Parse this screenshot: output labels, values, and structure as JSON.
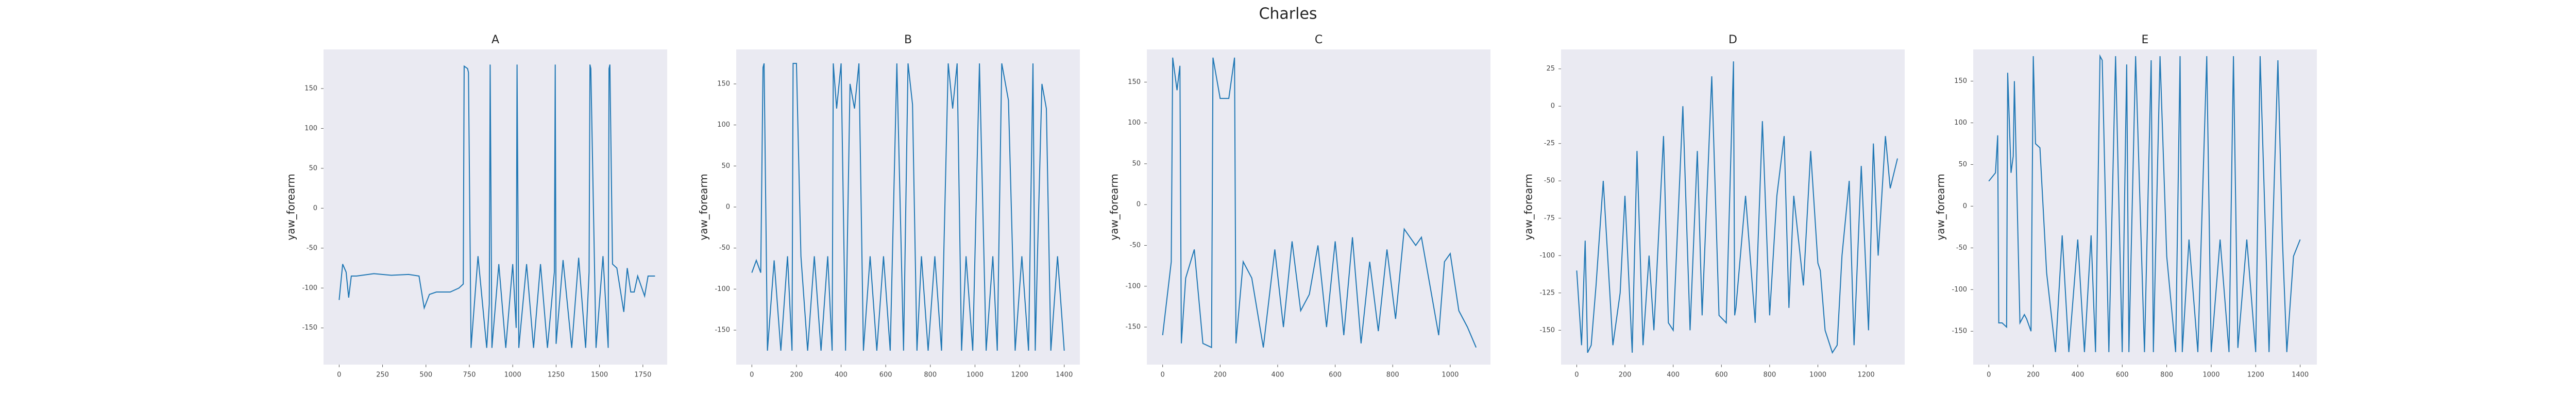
{
  "title": "Charles",
  "chart_data": [
    {
      "type": "line",
      "title": "A",
      "ylabel": "yaw_forearm",
      "color": "#1f77b4",
      "x": [
        0,
        20,
        40,
        55,
        70,
        100,
        200,
        300,
        400,
        460,
        490,
        520,
        560,
        640,
        690,
        715,
        720,
        740,
        745,
        760,
        800,
        850,
        865,
        870,
        880,
        920,
        960,
        1000,
        1020,
        1025,
        1035,
        1080,
        1120,
        1160,
        1200,
        1240,
        1245,
        1250,
        1290,
        1340,
        1380,
        1420,
        1440,
        1445,
        1450,
        1480,
        1520,
        1550,
        1555,
        1560,
        1575,
        1600,
        1640,
        1660,
        1680,
        1700,
        1720,
        1760,
        1780,
        1800,
        1820
      ],
      "values": [
        -115,
        -70,
        -80,
        -112,
        -85,
        -85,
        -82,
        -84,
        -83,
        -85,
        -125,
        -108,
        -105,
        -105,
        -100,
        -95,
        178,
        175,
        170,
        -175,
        -60,
        -175,
        -120,
        180,
        -175,
        -70,
        -175,
        -70,
        -150,
        180,
        -175,
        -70,
        -175,
        -70,
        -175,
        -80,
        180,
        -170,
        -65,
        -175,
        -62,
        -175,
        -80,
        180,
        175,
        -175,
        -60,
        -175,
        175,
        180,
        -70,
        -75,
        -130,
        -75,
        -105,
        -105,
        -85,
        -110,
        -85,
        -85,
        -85
      ],
      "xlim": [
        -90,
        1890
      ],
      "ylim": [
        -196,
        199
      ],
      "xticks": [
        0,
        250,
        500,
        750,
        1000,
        1250,
        1500,
        1750
      ],
      "yticks": [
        -150,
        -100,
        -50,
        0,
        50,
        100,
        150
      ]
    },
    {
      "type": "line",
      "title": "B",
      "ylabel": "yaw_forearm",
      "color": "#1f77b4",
      "x": [
        0,
        20,
        40,
        50,
        55,
        70,
        100,
        130,
        160,
        180,
        185,
        200,
        220,
        250,
        280,
        310,
        340,
        360,
        365,
        380,
        400,
        420,
        440,
        460,
        480,
        500,
        530,
        560,
        590,
        620,
        650,
        680,
        700,
        720,
        740,
        760,
        790,
        820,
        850,
        880,
        900,
        920,
        940,
        960,
        990,
        1020,
        1050,
        1080,
        1100,
        1120,
        1150,
        1180,
        1210,
        1240,
        1260,
        1270,
        1280,
        1300,
        1320,
        1340,
        1370,
        1400
      ],
      "values": [
        -80,
        -65,
        -80,
        170,
        175,
        -175,
        -65,
        -175,
        -60,
        -175,
        175,
        175,
        -60,
        -175,
        -60,
        -175,
        -60,
        -175,
        175,
        120,
        175,
        -175,
        150,
        120,
        175,
        -175,
        -60,
        -175,
        -60,
        -175,
        175,
        -175,
        175,
        125,
        -175,
        -60,
        -175,
        -60,
        -175,
        175,
        120,
        175,
        -175,
        -60,
        -175,
        175,
        -175,
        -60,
        -175,
        175,
        130,
        -175,
        -60,
        -175,
        175,
        -175,
        -60,
        150,
        120,
        -175,
        -60,
        -175
      ],
      "xlim": [
        -70,
        1470
      ],
      "ylim": [
        -192,
        192
      ],
      "xticks": [
        0,
        200,
        400,
        600,
        800,
        1000,
        1200,
        1400
      ],
      "yticks": [
        -150,
        -100,
        -50,
        0,
        50,
        100,
        150
      ]
    },
    {
      "type": "line",
      "title": "C",
      "ylabel": "yaw_forearm",
      "color": "#1f77b4",
      "x": [
        0,
        30,
        35,
        50,
        60,
        65,
        80,
        110,
        140,
        170,
        175,
        200,
        230,
        250,
        255,
        280,
        310,
        350,
        390,
        420,
        450,
        480,
        510,
        540,
        570,
        600,
        630,
        660,
        690,
        720,
        750,
        780,
        810,
        840,
        860,
        880,
        900,
        930,
        960,
        980,
        1000,
        1030,
        1060,
        1090
      ],
      "values": [
        -160,
        -70,
        180,
        140,
        170,
        -170,
        -90,
        -55,
        -170,
        -175,
        180,
        130,
        130,
        180,
        -170,
        -70,
        -90,
        -175,
        -55,
        -150,
        -45,
        -130,
        -110,
        -50,
        -150,
        -45,
        -160,
        -40,
        -170,
        -70,
        -155,
        -55,
        -140,
        -30,
        -40,
        -50,
        -40,
        -100,
        -160,
        -70,
        -60,
        -130,
        -150,
        -175
      ],
      "xlim": [
        -55,
        1140
      ],
      "ylim": [
        -196,
        190
      ],
      "xticks": [
        0,
        200,
        400,
        600,
        800,
        1000
      ],
      "yticks": [
        -150,
        -100,
        -50,
        0,
        50,
        100,
        150
      ]
    },
    {
      "type": "line",
      "title": "D",
      "ylabel": "yaw_forearm",
      "color": "#1f77b4",
      "x": [
        0,
        20,
        35,
        45,
        60,
        80,
        110,
        150,
        180,
        200,
        230,
        250,
        275,
        300,
        320,
        360,
        380,
        400,
        440,
        470,
        500,
        520,
        560,
        590,
        620,
        650,
        655,
        660,
        700,
        740,
        770,
        800,
        830,
        860,
        880,
        900,
        940,
        970,
        1000,
        1010,
        1030,
        1060,
        1080,
        1100,
        1130,
        1150,
        1180,
        1210,
        1230,
        1250,
        1280,
        1300,
        1330
      ],
      "values": [
        -110,
        -160,
        -90,
        -165,
        -160,
        -120,
        -50,
        -160,
        -125,
        -60,
        -165,
        -30,
        -160,
        -100,
        -150,
        -20,
        -145,
        -150,
        0,
        -150,
        -30,
        -140,
        20,
        -140,
        -145,
        30,
        -140,
        -135,
        -60,
        -145,
        -10,
        -140,
        -60,
        -20,
        -135,
        -60,
        -120,
        -30,
        -105,
        -110,
        -150,
        -165,
        -160,
        -100,
        -50,
        -160,
        -40,
        -150,
        -25,
        -100,
        -20,
        -55,
        -35
      ],
      "xlim": [
        -65,
        1360
      ],
      "ylim": [
        -173,
        38
      ],
      "xticks": [
        0,
        200,
        400,
        600,
        800,
        1000,
        1200
      ],
      "yticks": [
        -150,
        -125,
        -100,
        -75,
        -50,
        -25,
        0,
        25
      ]
    },
    {
      "type": "line",
      "title": "E",
      "ylabel": "yaw_forearm",
      "color": "#1f77b4",
      "x": [
        0,
        30,
        40,
        45,
        60,
        80,
        85,
        100,
        110,
        115,
        140,
        160,
        170,
        190,
        200,
        210,
        230,
        260,
        300,
        330,
        360,
        400,
        430,
        460,
        480,
        500,
        510,
        540,
        570,
        600,
        620,
        630,
        660,
        700,
        730,
        740,
        770,
        800,
        840,
        860,
        870,
        900,
        940,
        980,
        1000,
        1040,
        1080,
        1100,
        1120,
        1160,
        1200,
        1220,
        1260,
        1300,
        1320,
        1340,
        1370,
        1400
      ],
      "values": [
        30,
        40,
        85,
        -140,
        -140,
        -145,
        160,
        40,
        60,
        150,
        -140,
        -130,
        -135,
        -150,
        180,
        75,
        70,
        -80,
        -175,
        -35,
        -175,
        -40,
        -175,
        -35,
        -175,
        180,
        175,
        -175,
        180,
        -175,
        170,
        -175,
        180,
        -175,
        175,
        -175,
        180,
        -60,
        -175,
        180,
        -175,
        -40,
        -175,
        180,
        -175,
        -40,
        -175,
        180,
        -170,
        -40,
        -175,
        180,
        -175,
        175,
        -40,
        -175,
        -60,
        -40
      ],
      "xlim": [
        -70,
        1475
      ],
      "ylim": [
        -190,
        188
      ],
      "xticks": [
        0,
        200,
        400,
        600,
        800,
        1000,
        1200,
        1400
      ],
      "yticks": [
        -150,
        -100,
        -50,
        0,
        50,
        100,
        150
      ]
    }
  ]
}
